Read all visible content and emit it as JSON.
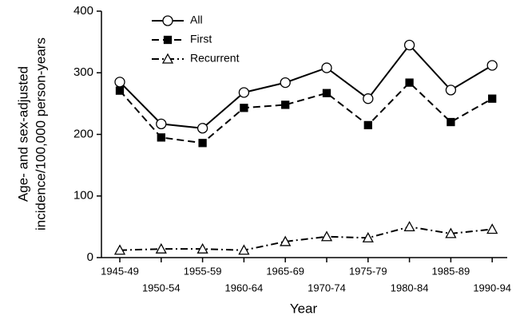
{
  "chart_data": {
    "type": "line",
    "y_label": [
      "Age- and sex-adjusted",
      "incidence/100,000 person-years"
    ],
    "x_label": "Year",
    "categories": [
      "1945-49",
      "1950-54",
      "1955-59",
      "1960-64",
      "1965-69",
      "1970-74",
      "1975-79",
      "1980-84",
      "1985-89",
      "1990-94"
    ],
    "series": [
      {
        "name": "All",
        "color": "#000000",
        "marker": "circle",
        "dash": "solid",
        "values": [
          285,
          217,
          210,
          268,
          284,
          308,
          258,
          345,
          272,
          312
        ]
      },
      {
        "name": "First",
        "color": "#000000",
        "marker": "square",
        "dash": "dashed",
        "values": [
          271,
          195,
          186,
          243,
          248,
          267,
          215,
          284,
          220,
          258
        ]
      },
      {
        "name": "Recurrent",
        "color": "#000000",
        "marker": "triangle",
        "dash": "dashdot",
        "values": [
          12,
          14,
          14,
          12,
          26,
          34,
          32,
          50,
          39,
          46
        ]
      }
    ],
    "ylim": [
      0,
      400
    ],
    "yticks": [
      0,
      100,
      200,
      300,
      400
    ],
    "grid": false,
    "legend": "upper left"
  }
}
